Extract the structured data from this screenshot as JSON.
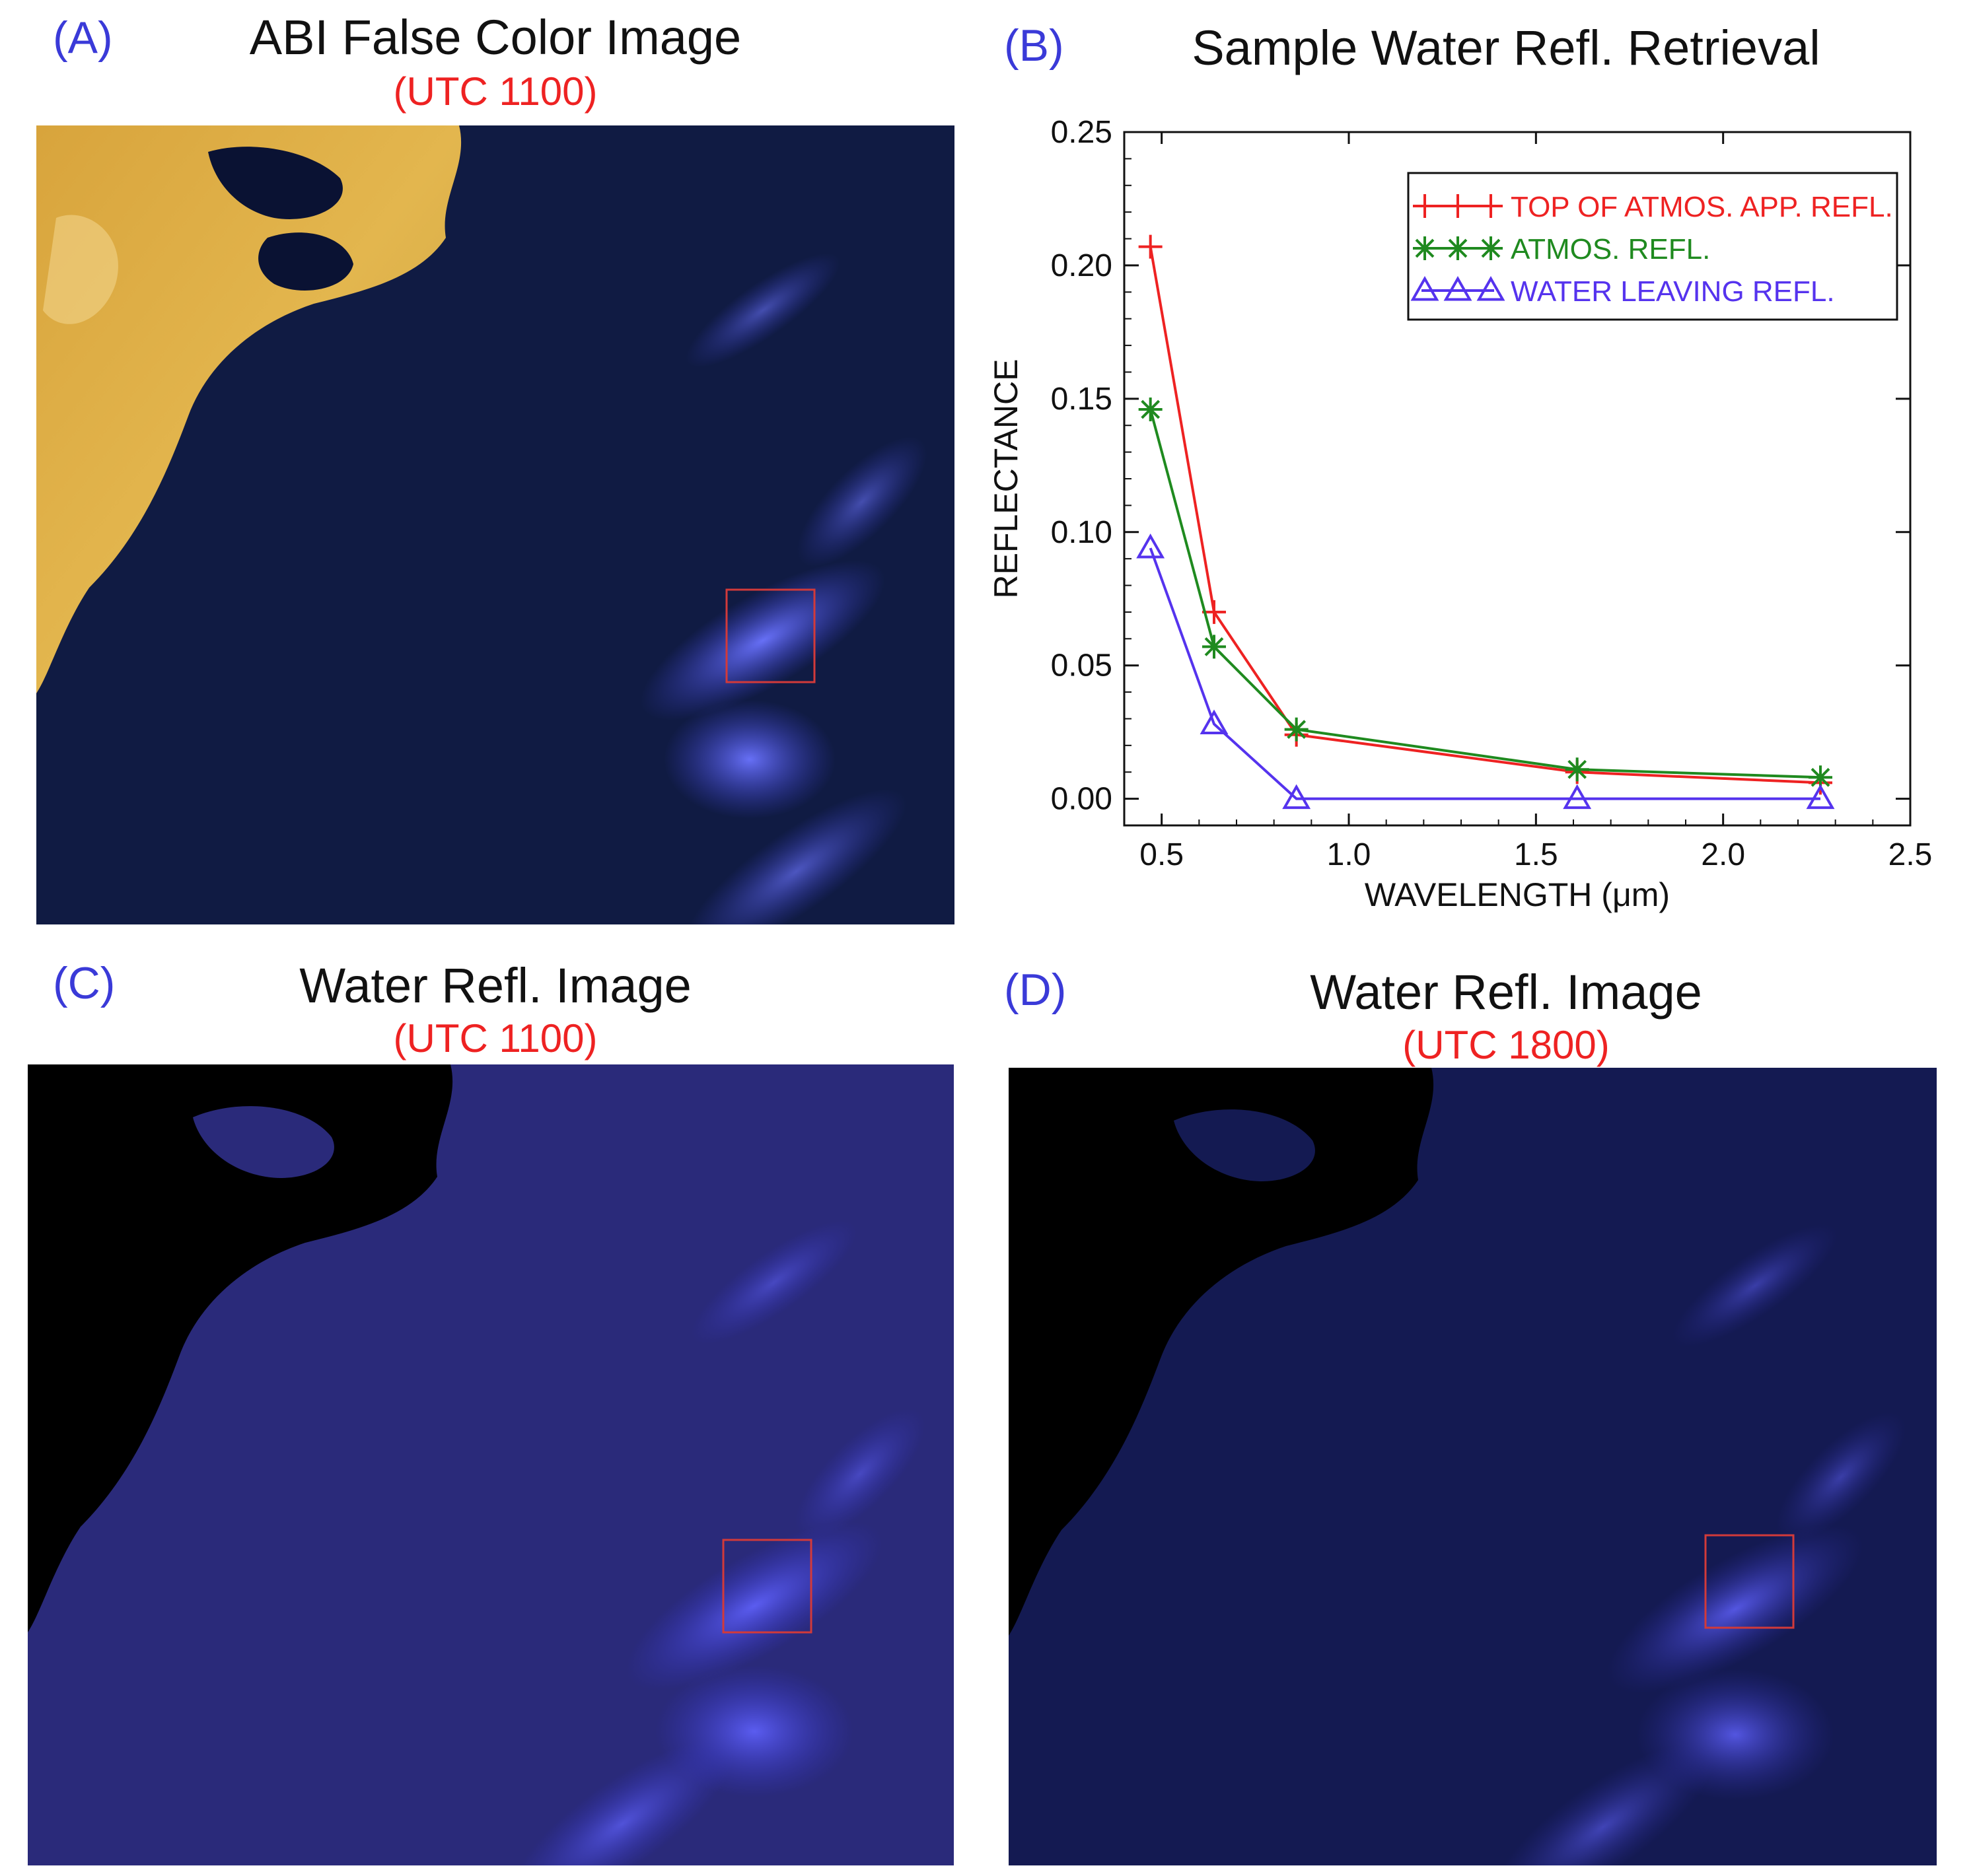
{
  "panels": {
    "a": {
      "letter": "(A)",
      "title": "ABI False Color Image",
      "subtitle": "(UTC 1100)"
    },
    "b": {
      "letter": "(B)",
      "title": "Sample Water Refl. Retrieval"
    },
    "c": {
      "letter": "(C)",
      "title": "Water Refl. Image",
      "subtitle": "(UTC 1100)"
    },
    "d": {
      "letter": "(D)",
      "title": "Water Refl. Image",
      "subtitle": "(UTC 1800)"
    }
  },
  "colors": {
    "panel_letter": "#3a3ad8",
    "subtitle": "#ee2222",
    "toa": "#ee2222",
    "atmos": "#1f8a1f",
    "water": "#5533ee",
    "land": "#d9a640",
    "water_dark": "#0c1638",
    "plume": "#5a5cf0",
    "box": "#d23a3a"
  },
  "chart_data": {
    "type": "line",
    "xlabel": "WAVELENGTH (μm)",
    "ylabel": "REFLECTANCE",
    "xlim": [
      0.4,
      2.5
    ],
    "ylim": [
      -0.01,
      0.25
    ],
    "xticks": [
      0.5,
      1.0,
      1.5,
      2.0,
      2.5
    ],
    "xtick_labels": [
      "0.5",
      "1.0",
      "1.5",
      "2.0",
      "2.5"
    ],
    "yticks": [
      0.0,
      0.05,
      0.1,
      0.15,
      0.2,
      0.25
    ],
    "ytick_labels": [
      "0.00",
      "0.05",
      "0.10",
      "0.15",
      "0.20",
      "0.25"
    ],
    "legend_position": "top-right",
    "series": [
      {
        "name": "TOP OF ATMOS. APP. REFL.",
        "marker": "plus",
        "color": "#ee2222",
        "x": [
          0.47,
          0.64,
          0.86,
          1.61,
          2.26
        ],
        "y": [
          0.207,
          0.07,
          0.024,
          0.01,
          0.006
        ]
      },
      {
        "name": "ATMOS. REFL.",
        "marker": "star",
        "color": "#1f8a1f",
        "x": [
          0.47,
          0.64,
          0.86,
          1.61,
          2.26
        ],
        "y": [
          0.146,
          0.057,
          0.026,
          0.011,
          0.008
        ]
      },
      {
        "name": "WATER LEAVING REFL.",
        "marker": "triangle",
        "color": "#5533ee",
        "x": [
          0.47,
          0.64,
          0.86,
          1.61,
          2.26
        ],
        "y": [
          0.094,
          0.028,
          0.0,
          0.0,
          0.0
        ]
      }
    ]
  }
}
